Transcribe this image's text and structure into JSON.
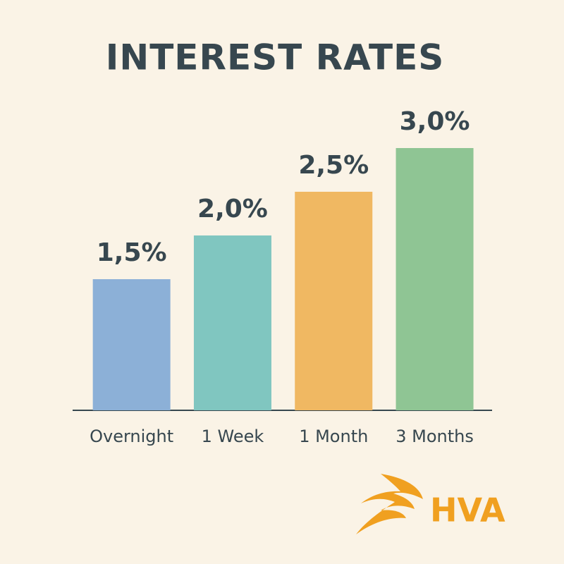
{
  "chart_data": {
    "type": "bar",
    "title": "INTEREST RATES",
    "categories": [
      "Overnight",
      "1 Week",
      "1 Month",
      "3 Months"
    ],
    "values": [
      1.5,
      2.0,
      2.5,
      3.0
    ],
    "value_labels": [
      "1,5%",
      "2,0%",
      "2,5%",
      "3,0%"
    ],
    "colors": [
      "#8cb0d7",
      "#80c6c0",
      "#f0b862",
      "#8fc594"
    ]
  },
  "logo": {
    "text": "HVA"
  }
}
